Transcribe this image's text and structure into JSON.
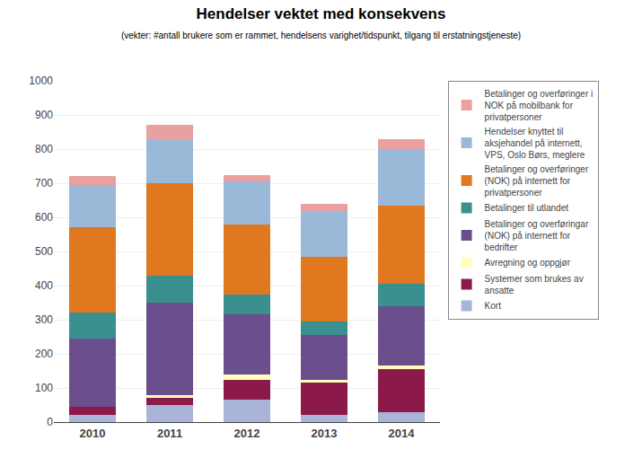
{
  "chart_data": {
    "type": "bar",
    "title": "Hendelser vektet med konsekvens",
    "subtitle": "(vekter: #antall brukere som er rammet, hendelsens varighet/tidspunkt, tilgang til erstatningstjeneste)",
    "categories": [
      "2010",
      "2011",
      "2012",
      "2013",
      "2014"
    ],
    "series": [
      {
        "name": "Kort",
        "color": "#aab4d8",
        "values": [
          20,
          50,
          65,
          20,
          30
        ]
      },
      {
        "name": "Systemer som brukes av\nansatte",
        "color": "#8b1a4a",
        "values": [
          25,
          20,
          60,
          95,
          125
        ]
      },
      {
        "name": "Avregning og oppgjør",
        "color": "#ffffbb",
        "values": [
          0,
          10,
          15,
          10,
          10
        ]
      },
      {
        "name": "Betalinger og overføringar\n(NOK) på internett for\nbedrifter",
        "color": "#6b4f8c",
        "values": [
          200,
          270,
          175,
          130,
          175
        ]
      },
      {
        "name": "Betalinger til utlandet",
        "color": "#3a8f8f",
        "values": [
          75,
          80,
          60,
          40,
          65
        ]
      },
      {
        "name": "Betalinger og overføringer\n(NOK) på internett for\nprivatpersoner",
        "color": "#e07820",
        "values": [
          250,
          270,
          205,
          190,
          230
        ]
      },
      {
        "name": "Hendelser knyttet til\naksjehandel på internett,\nVPS, Oslo Børs, meglere",
        "color": "#9ab8d8",
        "values": [
          125,
          130,
          125,
          130,
          165
        ]
      },
      {
        "name": "Betalinger og overføringer i\nNOK på mobilbank for\nprivatpersoner",
        "color": "#e8a0a0",
        "values": [
          25,
          40,
          20,
          25,
          30
        ]
      }
    ],
    "stacked": true,
    "ylim": [
      0,
      1000
    ],
    "yticks": [
      0,
      100,
      200,
      300,
      400,
      500,
      600,
      700,
      800,
      900,
      1000
    ],
    "grid": true,
    "legend": "right"
  }
}
